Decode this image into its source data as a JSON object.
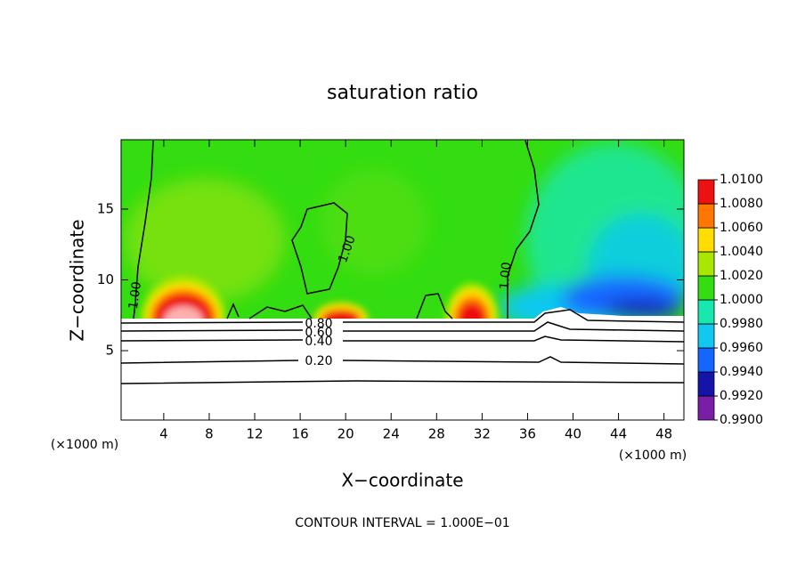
{
  "chart_data": {
    "type": "contour",
    "title": "saturation ratio",
    "x_label": "X−coordinate",
    "y_label": "Z−coordinate",
    "x_unit": "(×1000 m)",
    "footnote": "CONTOUR INTERVAL = 1.000E−01",
    "xlim": [
      0.25,
      49.75
    ],
    "ylim": [
      0.1,
      19.9
    ],
    "xticks": [
      4,
      8,
      12,
      16,
      20,
      24,
      28,
      32,
      36,
      40,
      44,
      48
    ],
    "yticks": [
      5,
      10,
      15
    ],
    "colorbar": {
      "lim": [
        0.99,
        1.01
      ],
      "ticks": [
        {
          "value": 0.99,
          "label": "0.9900"
        },
        {
          "value": 0.992,
          "label": "0.9920"
        },
        {
          "value": 0.994,
          "label": "0.9940"
        },
        {
          "value": 0.996,
          "label": "0.9960"
        },
        {
          "value": 0.998,
          "label": "0.9980"
        },
        {
          "value": 1.0,
          "label": "1.0000"
        },
        {
          "value": 1.002,
          "label": "1.0020"
        },
        {
          "value": 1.004,
          "label": "1.0040"
        },
        {
          "value": 1.006,
          "label": "1.0060"
        },
        {
          "value": 1.008,
          "label": "1.0080"
        },
        {
          "value": 1.01,
          "label": "1.0100"
        }
      ],
      "colors": [
        "#7a1ea8",
        "#1414a8",
        "#1466ff",
        "#10c8f0",
        "#18e8b0",
        "#33dd11",
        "#a8e800",
        "#ffdd00",
        "#ff7700",
        "#ee1111"
      ]
    },
    "contour_levels": [
      {
        "value": 1.0,
        "label": "1.00"
      },
      {
        "value": 0.8,
        "label": "0.80"
      },
      {
        "value": 0.6,
        "label": "0.60"
      },
      {
        "value": 0.4,
        "label": "0.40"
      },
      {
        "value": 0.2,
        "label": "0.20"
      }
    ]
  }
}
